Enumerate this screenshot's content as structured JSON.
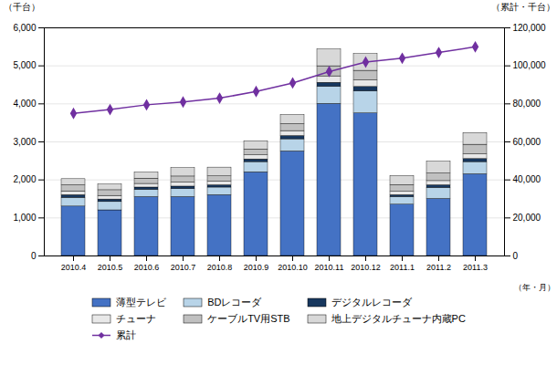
{
  "chart_data": {
    "type": "bar",
    "stacked": true,
    "grid": true,
    "legend": "bottom",
    "xlabel": "（年・月）",
    "ylabel": "（千台）",
    "y2label": "（累計・千台）",
    "categories": [
      "2010.4",
      "2010.5",
      "2010.6",
      "2010.7",
      "2010.8",
      "2010.9",
      "2010.10",
      "2010.11",
      "2010.12",
      "2011.1",
      "2011.2",
      "2011.3"
    ],
    "series": [
      {
        "name": "薄型テレビ",
        "color": "#4472C4",
        "values": [
          1300,
          1200,
          1550,
          1550,
          1600,
          2200,
          2750,
          4000,
          3750,
          1350,
          1500,
          2150
        ]
      },
      {
        "name": "BDレコーダ",
        "color": "#B8D4E8",
        "values": [
          230,
          220,
          190,
          210,
          200,
          270,
          320,
          450,
          580,
          200,
          290,
          320
        ]
      },
      {
        "name": "デジタルレコーダ",
        "color": "#17375E",
        "values": [
          70,
          65,
          60,
          65,
          60,
          70,
          85,
          105,
          115,
          50,
          70,
          80
        ]
      },
      {
        "name": "チューナ",
        "color": "#E8E8E8",
        "values": [
          100,
          95,
          95,
          105,
          95,
          110,
          130,
          170,
          175,
          85,
          110,
          125
        ]
      },
      {
        "name": "ケーブルTV用STB",
        "color": "#C0C0C0",
        "values": [
          160,
          150,
          140,
          160,
          140,
          150,
          185,
          265,
          250,
          180,
          200,
          250
        ]
      },
      {
        "name": "地上デジタルチューナ内蔵PC",
        "color": "#D8D8D8",
        "values": [
          160,
          150,
          160,
          220,
          230,
          220,
          240,
          440,
          440,
          240,
          310,
          310
        ]
      },
      {
        "name": "累計",
        "color": "#7030A0",
        "type": "line",
        "axis": "y2",
        "marker": "diamond",
        "values": [
          75000,
          77000,
          79500,
          81000,
          83000,
          86500,
          91000,
          97000,
          102000,
          104000,
          107000,
          110000
        ]
      }
    ],
    "ylim": [
      0,
      6000
    ],
    "yticks": [
      0,
      {
        "value": 1000,
        "label": "1,000"
      },
      {
        "value": 2000,
        "label": "2,000"
      },
      {
        "value": 3000,
        "label": "3,000"
      },
      {
        "value": 4000,
        "label": "4,000"
      },
      {
        "value": 5000,
        "label": "5,000"
      },
      {
        "value": 6000,
        "label": "6,000"
      }
    ],
    "y2lim": [
      0,
      120000
    ],
    "y2ticks": [
      0,
      {
        "value": 20000,
        "label": "20,000"
      },
      {
        "value": 40000,
        "label": "40,000"
      },
      {
        "value": 60000,
        "label": "60,000"
      },
      {
        "value": 80000,
        "label": "80,000"
      },
      {
        "value": 100000,
        "label": "100,000"
      },
      {
        "value": 120000,
        "label": "120,000"
      }
    ]
  }
}
